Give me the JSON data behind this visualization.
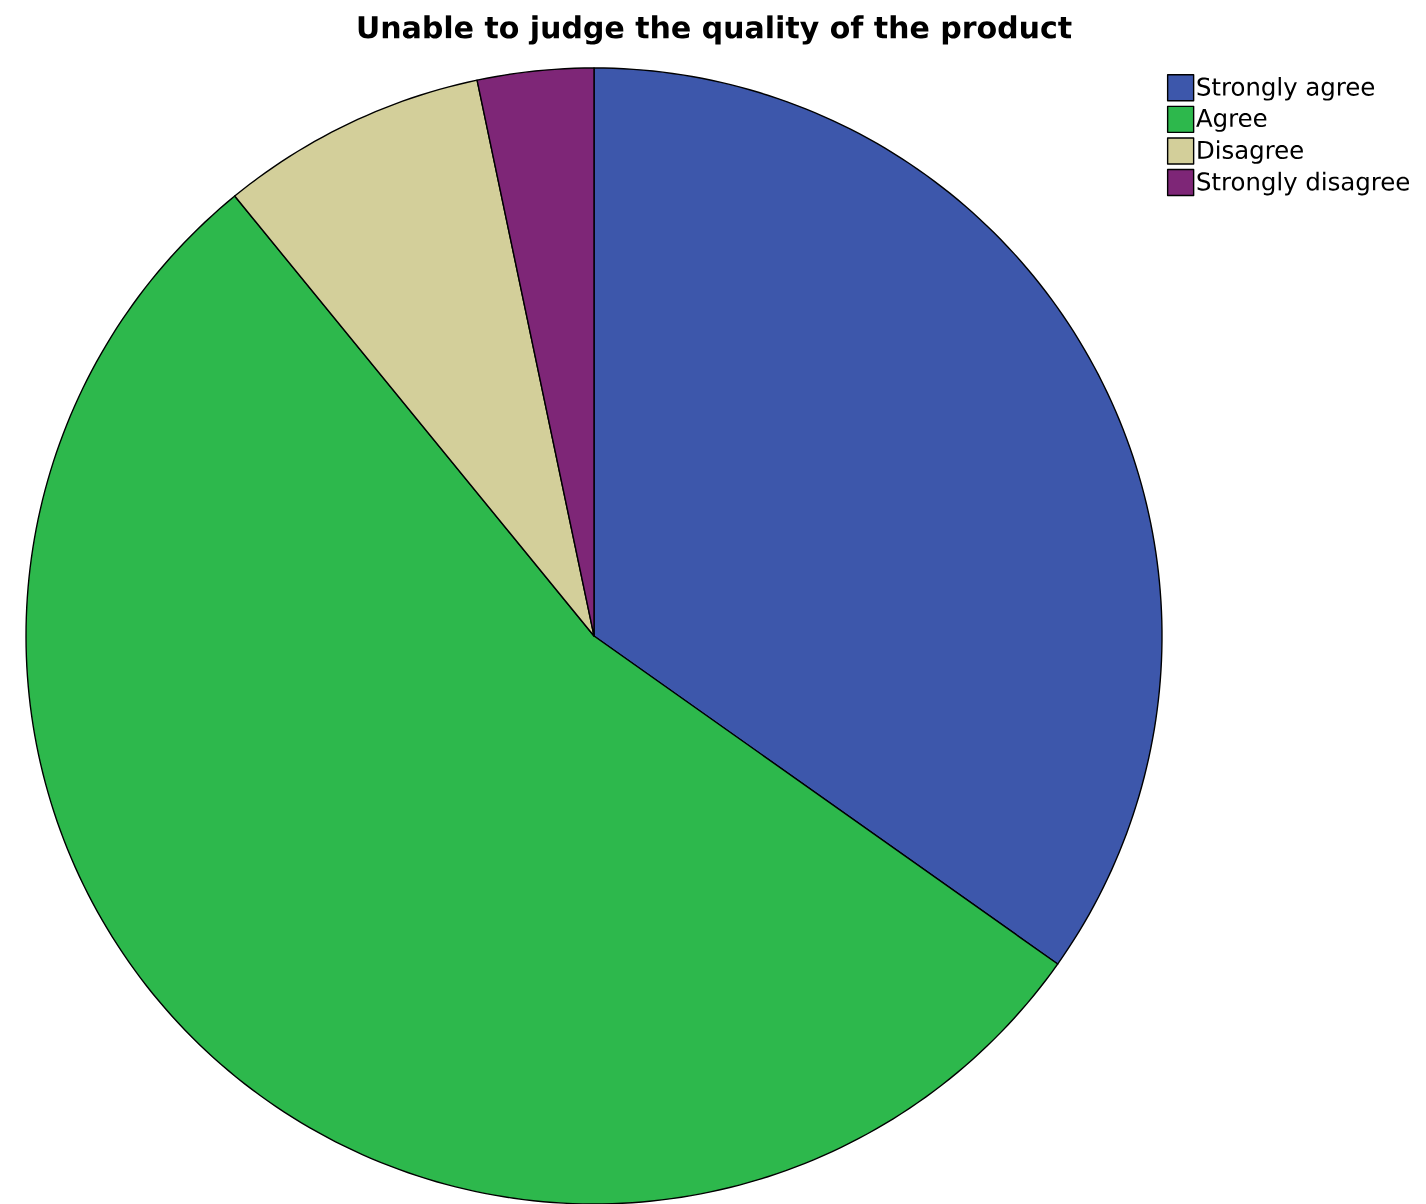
{
  "chart_data": {
    "type": "pie",
    "title": "Unable to judge the quality of the product",
    "categories": [
      "Strongly agree",
      "Agree",
      "Disagree",
      "Strongly disagree"
    ],
    "values": [
      34.8,
      54.3,
      7.6,
      3.3
    ],
    "colors": [
      "#3d57ab",
      "#2db84c",
      "#d3cf9a",
      "#7e2677"
    ],
    "legend": "top right"
  }
}
